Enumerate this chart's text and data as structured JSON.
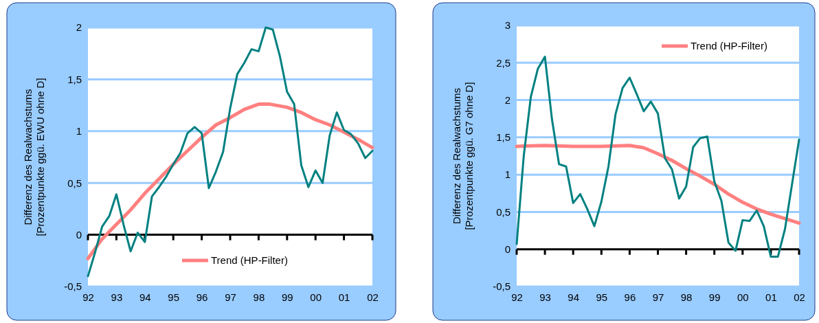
{
  "chart_data": [
    {
      "type": "line",
      "ylabel": "Differenz des Realwachstums\n[Prozentpunkte ggü. EWU ohne D]",
      "xlim": [
        1992,
        2002
      ],
      "xticks": [
        {
          "value": 1992,
          "label": "92"
        },
        {
          "value": 1993,
          "label": "93"
        },
        {
          "value": 1994,
          "label": "94"
        },
        {
          "value": 1995,
          "label": "95"
        },
        {
          "value": 1996,
          "label": "96"
        },
        {
          "value": 1997,
          "label": "97"
        },
        {
          "value": 1998,
          "label": "98"
        },
        {
          "value": 1999,
          "label": "99"
        },
        {
          "value": 2000,
          "label": "00"
        },
        {
          "value": 2001,
          "label": "01"
        },
        {
          "value": 2002,
          "label": "02"
        }
      ],
      "ylim": [
        -0.5,
        2
      ],
      "yticks": [
        {
          "value": -0.5,
          "label": "-0,5"
        },
        0,
        {
          "value": 0.5,
          "label": "0,5"
        },
        1,
        {
          "value": 1.5,
          "label": "1,5"
        },
        2
      ],
      "grid": "y",
      "legend": "bottom",
      "line_style": "solid",
      "marker": "none",
      "series": [
        {
          "color": "#008080",
          "x": [
            1992,
            1992.25,
            1992.5,
            1992.75,
            1993,
            1993.25,
            1993.5,
            1993.75,
            1994,
            1994.25,
            1994.5,
            1994.75,
            1995,
            1995.25,
            1995.5,
            1995.75,
            1996,
            1996.25,
            1996.5,
            1996.75,
            1997,
            1997.25,
            1997.5,
            1997.75,
            1998,
            1998.25,
            1998.5,
            1998.75,
            1999,
            1999.25,
            1999.5,
            1999.75,
            2000,
            2000.25,
            2000.5,
            2000.75,
            2001,
            2001.25,
            2001.5,
            2001.75,
            2002
          ],
          "values": [
            -0.4,
            -0.17,
            0.08,
            0.18,
            0.39,
            0.1,
            -0.16,
            0.02,
            -0.07,
            0.37,
            0.46,
            0.56,
            0.68,
            0.79,
            0.98,
            1.04,
            0.98,
            0.45,
            0.61,
            0.8,
            1.22,
            1.55,
            1.66,
            1.79,
            1.77,
            2.0,
            1.98,
            1.72,
            1.38,
            1.26,
            0.67,
            0.46,
            0.62,
            0.5,
            0.96,
            1.18,
            1.01,
            0.97,
            0.88,
            0.74,
            0.81
          ]
        },
        {
          "name": "Trend (HP-Filter)",
          "color": "#ff8080",
          "x": [
            1992,
            1992.5,
            1993,
            1993.5,
            1994,
            1994.5,
            1995,
            1995.5,
            1996,
            1996.5,
            1997,
            1997.5,
            1998,
            1998.4,
            1999,
            1999.5,
            2000,
            2000.5,
            2001,
            2001.5,
            2002
          ],
          "values": [
            -0.23,
            -0.04,
            0.1,
            0.24,
            0.4,
            0.54,
            0.68,
            0.81,
            0.94,
            1.06,
            1.13,
            1.21,
            1.26,
            1.26,
            1.23,
            1.18,
            1.11,
            1.06,
            0.99,
            0.92,
            0.84
          ]
        }
      ]
    },
    {
      "type": "line",
      "ylabel": "Differenz des Realwachstums\n[Prozentpunkte ggü. G7 ohne D]",
      "xlim": [
        1992,
        2002
      ],
      "xticks": [
        {
          "value": 1992,
          "label": "92"
        },
        {
          "value": 1993,
          "label": "93"
        },
        {
          "value": 1994,
          "label": "94"
        },
        {
          "value": 1995,
          "label": "95"
        },
        {
          "value": 1996,
          "label": "96"
        },
        {
          "value": 1997,
          "label": "97"
        },
        {
          "value": 1998,
          "label": "98"
        },
        {
          "value": 1999,
          "label": "99"
        },
        {
          "value": 2000,
          "label": "00"
        },
        {
          "value": 2001,
          "label": "01"
        },
        {
          "value": 2002,
          "label": "02"
        }
      ],
      "ylim": [
        -0.5,
        3
      ],
      "yticks": [
        {
          "value": -0.5,
          "label": "-0,5"
        },
        0,
        {
          "value": 0.5,
          "label": "0,5"
        },
        1,
        {
          "value": 1.5,
          "label": "1,5"
        },
        2,
        {
          "value": 2.5,
          "label": "2,5"
        },
        3
      ],
      "grid": "y",
      "legend": "top right",
      "line_style": "solid",
      "marker": "none",
      "series": [
        {
          "color": "#008080",
          "x": [
            1992,
            1992.25,
            1992.5,
            1992.75,
            1993,
            1993.25,
            1993.5,
            1993.75,
            1994,
            1994.25,
            1994.5,
            1994.75,
            1995,
            1995.25,
            1995.5,
            1995.75,
            1996,
            1996.25,
            1996.5,
            1996.75,
            1997,
            1997.25,
            1997.5,
            1997.75,
            1998,
            1998.25,
            1998.5,
            1998.75,
            1999,
            1999.25,
            1999.5,
            1999.75,
            2000,
            2000.25,
            2000.5,
            2000.75,
            2001,
            2001.25,
            2001.5,
            2001.75,
            2002
          ],
          "values": [
            0.07,
            1.25,
            2.04,
            2.42,
            2.58,
            1.74,
            1.14,
            1.11,
            0.62,
            0.74,
            0.54,
            0.31,
            0.64,
            1.11,
            1.81,
            2.16,
            2.3,
            2.08,
            1.85,
            1.98,
            1.82,
            1.22,
            1.07,
            0.68,
            0.84,
            1.37,
            1.49,
            1.51,
            0.91,
            0.65,
            0.09,
            -0.02,
            0.39,
            0.38,
            0.52,
            0.31,
            -0.1,
            -0.1,
            0.27,
            0.87,
            1.47
          ]
        },
        {
          "name": "Trend (HP-Filter)",
          "color": "#ff8080",
          "x": [
            1992,
            1993,
            1994,
            1995,
            1996,
            1996.5,
            1997,
            1997.5,
            1998,
            1998.5,
            1999,
            1999.5,
            2000,
            2000.5,
            2001,
            2001.5,
            2002
          ],
          "values": [
            1.38,
            1.39,
            1.38,
            1.38,
            1.39,
            1.36,
            1.28,
            1.19,
            1.08,
            0.98,
            0.87,
            0.74,
            0.63,
            0.54,
            0.47,
            0.41,
            0.35
          ]
        }
      ]
    }
  ]
}
